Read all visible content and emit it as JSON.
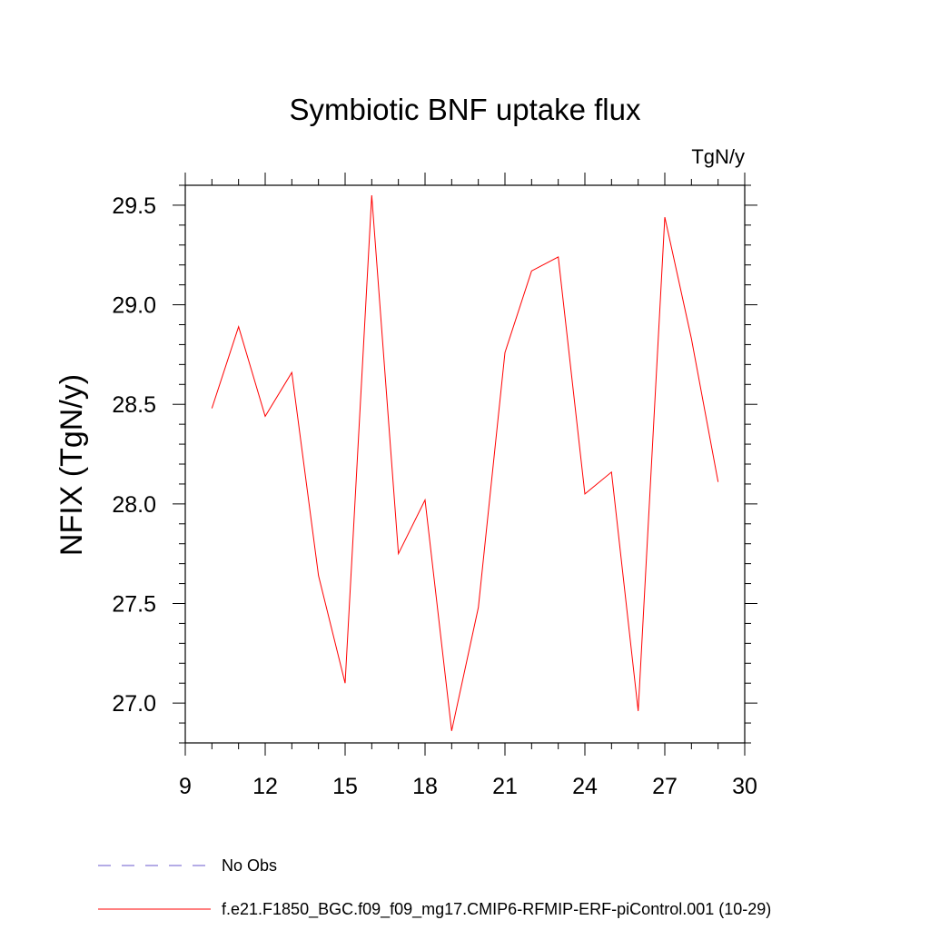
{
  "chart_data": {
    "type": "line",
    "title": "Symbiotic BNF uptake flux",
    "units_label": "TgN/y",
    "ylabel": "NFIX  (TgN/y)",
    "xlabel": "",
    "xlim": [
      9,
      30
    ],
    "ylim": [
      26.8,
      29.6
    ],
    "x_ticks": [
      9,
      12,
      15,
      18,
      21,
      24,
      27,
      30
    ],
    "y_ticks": [
      "27.0",
      "27.5",
      "28.0",
      "28.5",
      "29.0",
      "29.5"
    ],
    "grid": false,
    "legend_position": "bottom-left, below plot",
    "series": [
      {
        "name": "f.e21.F1850_BGC.f09_f09_mg17.CMIP6-RFMIP-ERF-piControl.001 (10-29)",
        "color": "#ff0000",
        "line_style": "solid",
        "x": [
          10,
          11,
          12,
          13,
          14,
          15,
          16,
          17,
          18,
          19,
          20,
          21,
          22,
          23,
          24,
          25,
          26,
          27,
          28,
          29
        ],
        "y": [
          28.48,
          28.89,
          28.44,
          28.66,
          27.64,
          27.1,
          29.55,
          27.75,
          28.02,
          26.86,
          27.48,
          28.76,
          29.17,
          29.24,
          28.05,
          28.16,
          26.96,
          29.44,
          28.83,
          28.11
        ]
      }
    ],
    "legend": [
      {
        "label": "No Obs",
        "color": "#6a5acd",
        "line_style": "dashed"
      },
      {
        "label": "f.e21.F1850_BGC.f09_f09_mg17.CMIP6-RFMIP-ERF-piControl.001 (10-29)",
        "color": "#ff0000",
        "line_style": "solid"
      }
    ]
  }
}
